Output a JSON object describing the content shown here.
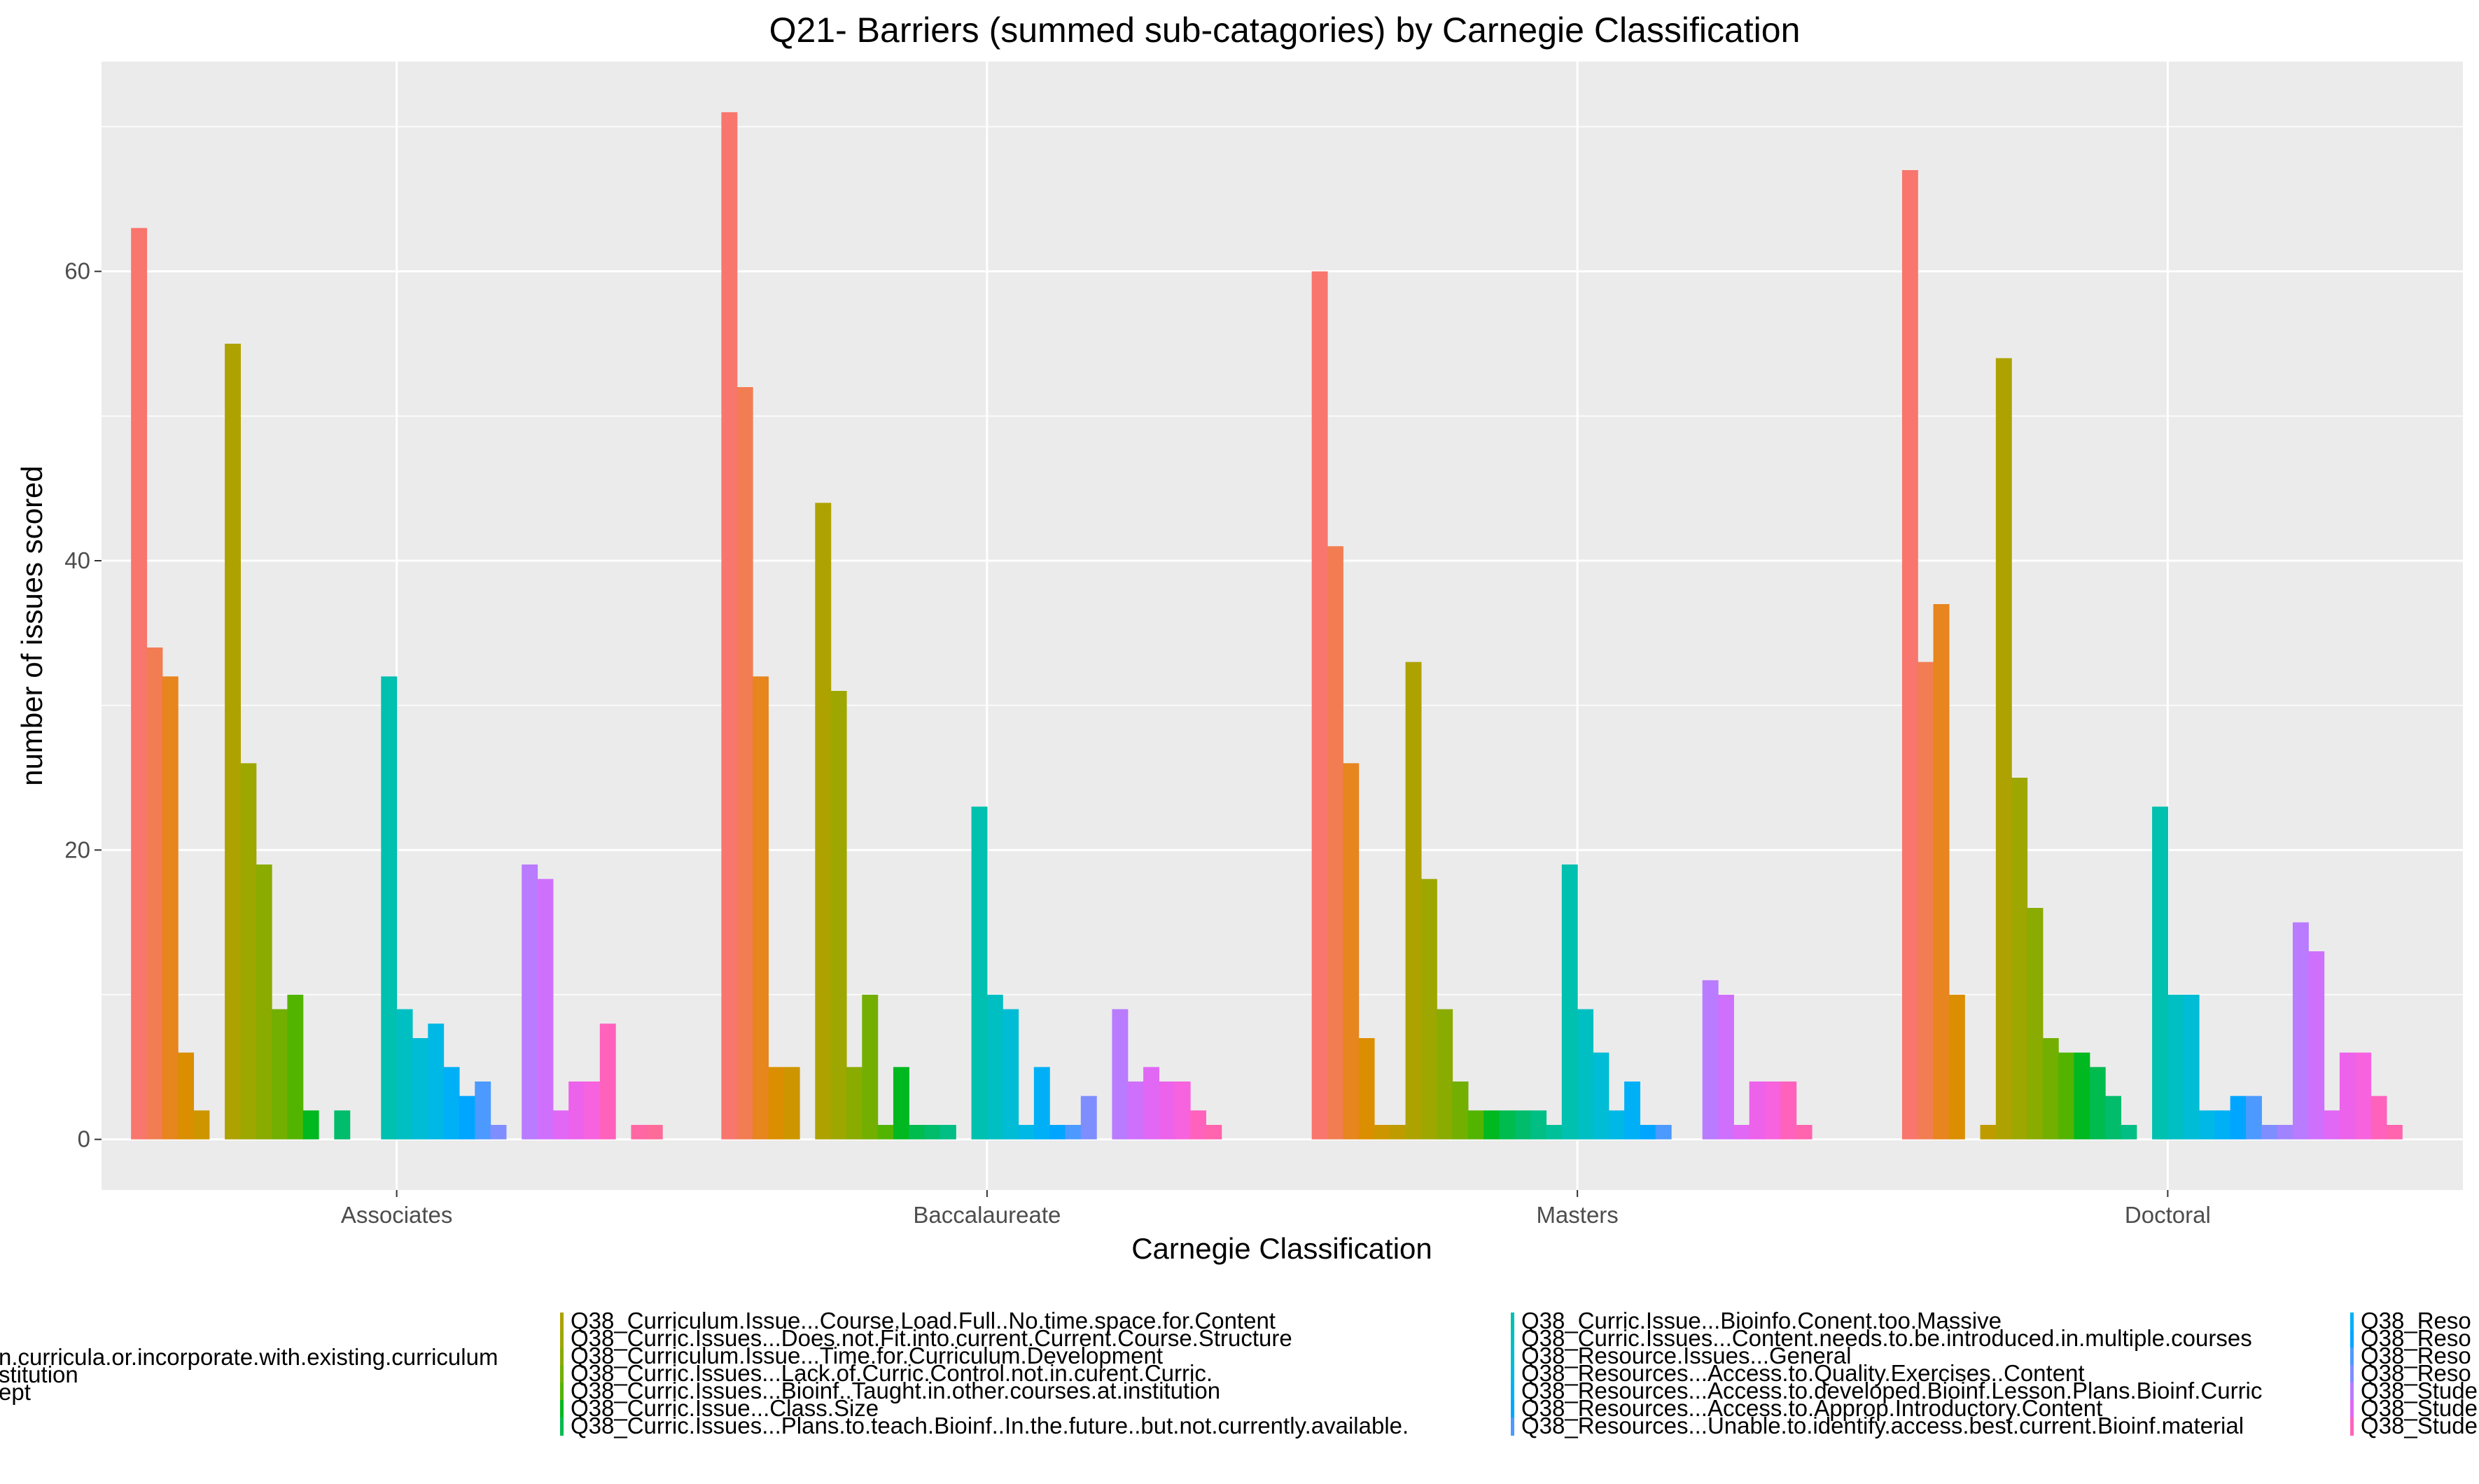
{
  "chart_data": {
    "type": "bar",
    "title": "Q21- Barriers (summed sub-catagories) by Carnegie Classification",
    "xlabel": "Carnegie Classification",
    "ylabel": "number of issues scored",
    "categories": [
      "Associates",
      "Baccalaureate",
      "Masters",
      "Doctoral"
    ],
    "ylim": [
      -3.5,
      74.5
    ],
    "yticks": [
      0,
      20,
      40,
      60
    ],
    "grid": true,
    "legend_position": "bottom",
    "series": [
      {
        "color": "#F8766D",
        "values": [
          63,
          71,
          60,
          67
        ]
      },
      {
        "color": "#F27D52",
        "values": [
          34,
          52,
          41,
          33
        ]
      },
      {
        "color": "#E7851E",
        "values": [
          32,
          32,
          26,
          37
        ]
      },
      {
        "color": "#DB8E00",
        "values": [
          6,
          5,
          7,
          10
        ]
      },
      {
        "color": "#CD9600",
        "values": [
          2,
          5,
          1,
          0
        ]
      },
      {
        "color": "#BE9C00",
        "values": [
          0,
          0,
          1,
          1
        ]
      },
      {
        "name": "Q38_Curriculum.Issue...Course.Load.Full..No.time.space.for.Content",
        "color": "#AEA200",
        "values": [
          55,
          44,
          33,
          54
        ]
      },
      {
        "name": "Q38_Curric.Issues...Does.not.Fit.into.current.Current.Course.Structure",
        "color": "#9DA700",
        "values": [
          26,
          31,
          18,
          25
        ]
      },
      {
        "name": "Q38_Curriculum.Issue...Time.for.Curriculum.Development",
        "color": "#8AAB00",
        "values": [
          19,
          5,
          9,
          16
        ]
      },
      {
        "name": "Q38_Curric.Issues...Lack.of.Curric.Control.not.in.curent.Curric.",
        "color": "#72AF00",
        "values": [
          9,
          10,
          4,
          7
        ]
      },
      {
        "name": "Q38_Curric.Issues...Bioinf..Taught.in.other.courses.at.institution",
        "color": "#53B400",
        "values": [
          10,
          1,
          2,
          6
        ]
      },
      {
        "name": "Q38_Curric.Issue...Class.Size",
        "color": "#00B81F",
        "values": [
          2,
          5,
          2,
          6
        ]
      },
      {
        "name": "Q38_Curric.Issues...Plans.to.teach.Bioinf..In.the.future..but.not.currently.available.",
        "color": "#00BB4E",
        "values": [
          0,
          1,
          2,
          5
        ]
      },
      {
        "color": "#00BC6B",
        "values": [
          2,
          1,
          2,
          3
        ]
      },
      {
        "color": "#00BE84",
        "values": [
          0,
          1,
          2,
          1
        ]
      },
      {
        "color": "#00C09A",
        "values": [
          0,
          0,
          1,
          0
        ]
      },
      {
        "name": "Q38_Curric.Issue...Bioinfo.Conent.too.Massive",
        "color": "#00C0AF",
        "values": [
          32,
          23,
          19,
          23
        ]
      },
      {
        "name": "Q38_Curric.Issues...Content.needs.to.be.introduced.in.multiple.courses",
        "color": "#00BFC2",
        "values": [
          9,
          10,
          9,
          10
        ]
      },
      {
        "name": "Q38_Resource.Issues...General",
        "color": "#00BCD5",
        "values": [
          7,
          9,
          6,
          10
        ]
      },
      {
        "name": "Q38_Resources...Access.to.Quality.Exercises..Content",
        "color": "#00B8E5",
        "values": [
          8,
          1,
          2,
          2
        ]
      },
      {
        "name": "Q38_Resources...Access.to.developed.Bioinf.Lesson.Plans.Bioinf.Curric",
        "color": "#00B0F6",
        "values": [
          5,
          5,
          4,
          2
        ]
      },
      {
        "name": "Q38_Resources...Access.to.Approp.Introductory.Content",
        "color": "#00A5FF",
        "values": [
          3,
          1,
          1,
          3
        ]
      },
      {
        "name": "Q38_Resources...Unable.to.identify.access.best.current.Bioinf.material",
        "color": "#4C9AFF",
        "values": [
          4,
          1,
          1,
          3
        ]
      },
      {
        "color": "#7F8EFF",
        "values": [
          1,
          3,
          0,
          1
        ]
      },
      {
        "color": "#A283FF",
        "values": [
          0,
          0,
          0,
          1
        ]
      },
      {
        "color": "#B97BFF",
        "values": [
          19,
          9,
          11,
          15
        ]
      },
      {
        "color": "#CF70FD",
        "values": [
          18,
          4,
          10,
          13
        ]
      },
      {
        "color": "#E068F5",
        "values": [
          2,
          5,
          1,
          2
        ]
      },
      {
        "color": "#EC62EA",
        "values": [
          4,
          4,
          4,
          6
        ]
      },
      {
        "color": "#F763DE",
        "values": [
          4,
          4,
          4,
          6
        ]
      },
      {
        "color": "#FF62BC",
        "values": [
          8,
          2,
          4,
          3
        ]
      },
      {
        "color": "#FF64AE",
        "values": [
          0,
          1,
          1,
          1
        ]
      },
      {
        "color": "#FF67A4",
        "values": [
          1,
          0,
          0,
          0
        ]
      },
      {
        "color": "#FD6B99",
        "values": [
          1,
          0,
          0,
          0
        ]
      }
    ],
    "legend_left_partial": [
      "n.curricula.or.incorporate.with.existing.curriculum",
      "stitution",
      "ept"
    ],
    "legend_right_partial": [
      {
        "text": "Q38_Reso",
        "color": "#00B0F6"
      },
      {
        "text": "Q38_Reso",
        "color": "#00A5FF"
      },
      {
        "text": "Q38_Reso",
        "color": "#4C9AFF"
      },
      {
        "text": "Q38_Reso",
        "color": "#7F8EFF"
      },
      {
        "text": "Q38_Stude",
        "color": "#B97BFF"
      },
      {
        "text": "Q38_Stude",
        "color": "#E068F5"
      },
      {
        "text": "Q38_Stude",
        "color": "#FF62BC"
      }
    ]
  }
}
